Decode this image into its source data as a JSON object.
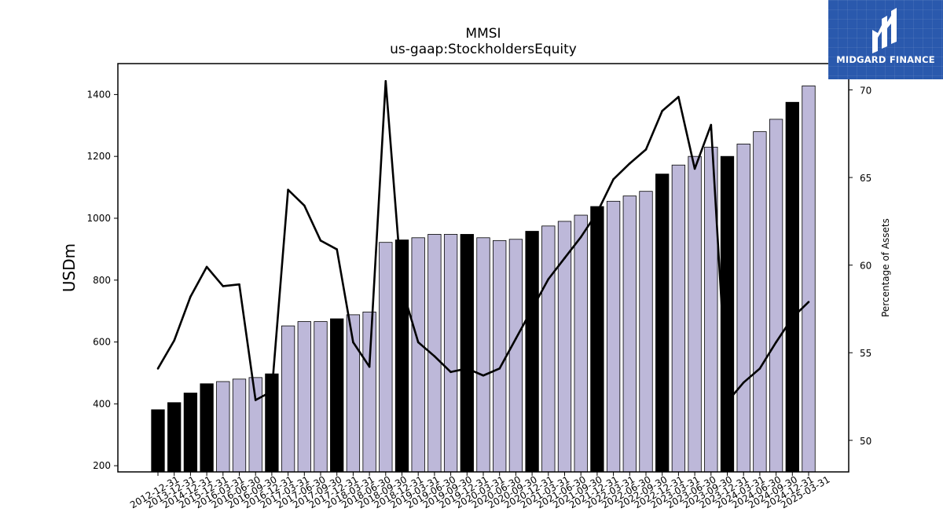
{
  "logo": {
    "text": "MIDGARD FINANCE"
  },
  "chart_data": {
    "type": "bar",
    "title": "MMSI",
    "subtitle": "us-gaap:StockholdersEquity",
    "ylabel": "USDm",
    "ylabel_right": "Percentage of Assets",
    "ylim": [
      180,
      1500
    ],
    "ylim_right": [
      48.2,
      71.5
    ],
    "yticks": [
      200,
      400,
      600,
      800,
      1000,
      1200,
      1400
    ],
    "yticks_right": [
      50,
      55,
      60,
      65,
      70
    ],
    "grid": false,
    "categories": [
      "2012-12-31",
      "2013-12-31",
      "2014-12-31",
      "2015-12-31",
      "2016-03-31",
      "2016-06-30",
      "2016-09-30",
      "2016-12-31",
      "2017-03-31",
      "2017-06-30",
      "2017-09-30",
      "2017-12-31",
      "2018-03-31",
      "2018-06-30",
      "2018-09-30",
      "2018-12-31",
      "2019-03-31",
      "2019-06-30",
      "2019-09-30",
      "2019-12-31",
      "2020-03-31",
      "2020-06-30",
      "2020-09-30",
      "2020-12-31",
      "2021-03-31",
      "2021-06-30",
      "2021-09-30",
      "2021-12-31",
      "2022-03-31",
      "2022-06-30",
      "2022-09-30",
      "2022-12-31",
      "2023-03-31",
      "2023-06-30",
      "2023-09-30",
      "2023-12-31",
      "2024-03-31",
      "2024-06-30",
      "2024-09-30",
      "2024-12-31",
      "2025-03-31"
    ],
    "series": [
      {
        "type": "bar",
        "values": [
          381,
          404,
          435,
          465,
          472,
          480,
          485,
          497,
          652,
          666,
          666,
          675,
          688,
          697,
          922,
          930,
          937,
          948,
          948,
          948,
          937,
          928,
          932,
          958,
          975,
          990,
          1010,
          1038,
          1055,
          1072,
          1087,
          1143,
          1172,
          1200,
          1230,
          1200,
          1240,
          1280,
          1320,
          1375,
          1428
        ],
        "highlight": [
          true,
          true,
          true,
          true,
          false,
          false,
          false,
          true,
          false,
          false,
          false,
          true,
          false,
          false,
          false,
          true,
          false,
          false,
          false,
          true,
          false,
          false,
          false,
          true,
          false,
          false,
          false,
          true,
          false,
          false,
          false,
          true,
          false,
          false,
          false,
          true,
          false,
          false,
          false,
          true,
          false
        ],
        "colors": {
          "highlight": "#000000",
          "normal": "#bdb8d9"
        }
      },
      {
        "type": "line",
        "axis": "right",
        "values": [
          54.1,
          55.7,
          58.2,
          59.9,
          58.8,
          58.9,
          52.3,
          52.8,
          64.3,
          63.4,
          61.4,
          60.9,
          55.6,
          54.2,
          70.5,
          58.7,
          55.6,
          54.8,
          53.9,
          54.1,
          53.7,
          54.1,
          55.8,
          57.5,
          59.2,
          60.4,
          61.6,
          63.0,
          64.9,
          65.8,
          66.6,
          68.8,
          69.6,
          65.5,
          68.0,
          52.2,
          53.3,
          54.1,
          55.6,
          57.0,
          57.9
        ],
        "color": "#000000"
      }
    ]
  }
}
